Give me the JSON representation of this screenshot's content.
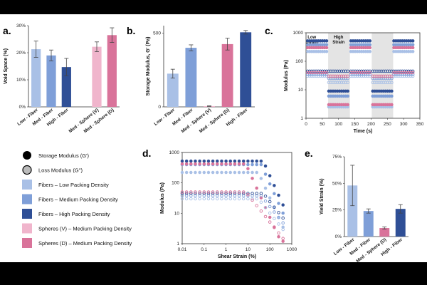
{
  "colors": {
    "low_fiber": "#a9c0e6",
    "med_fiber": "#7f9fd8",
    "high_fiber": "#2f4f96",
    "sphere_v": "#f0b5cc",
    "sphere_d": "#d9739a",
    "strain_band": "#e4e4e4"
  },
  "chart_data": [
    {
      "panel": "a.",
      "type": "bar",
      "title": "",
      "xlabel": "",
      "ylabel": "Void Space (%)",
      "ylim": [
        0,
        30
      ],
      "yticks": [
        "0%",
        "10%",
        "20%",
        "30%"
      ],
      "categories": [
        "Low - Fiber",
        "Med - Fiber",
        "High - Fiber",
        "Med - Sphere (V)",
        "Med - Sphere (D)"
      ],
      "values": [
        21.3,
        19.0,
        14.7,
        22.2,
        26.5
      ],
      "errors": [
        3.0,
        2.0,
        3.2,
        1.8,
        2.7
      ],
      "gap_after_index": 2
    },
    {
      "panel": "b.",
      "type": "bar",
      "title": "",
      "xlabel": "",
      "ylabel": "Storage Modulus, G' (Pa)",
      "ylim": [
        0,
        550
      ],
      "yticks": [
        "0",
        "500"
      ],
      "categories": [
        "Low - Fiber",
        "Med - Fiber",
        "Med - Sphere (V)",
        "Med - Sphere (D)",
        "High - Fiber"
      ],
      "values": [
        225,
        400,
        5,
        425,
        505
      ],
      "errors": [
        30,
        20,
        2,
        40,
        12
      ]
    },
    {
      "panel": "c.",
      "type": "scatter",
      "title": "",
      "xlabel": "Time (s)",
      "ylabel": "Modulus (Pa)",
      "xlim": [
        0,
        350
      ],
      "ylim": [
        1,
        1000
      ],
      "xticks": [
        "0",
        "50",
        "100",
        "150",
        "200",
        "250",
        "300",
        "350"
      ],
      "yticks": [
        "1",
        "10",
        "100",
        "1000"
      ],
      "annotations": [
        "Low\nStrain",
        "High\nStrain"
      ],
      "shaded_intervals": [
        [
          68,
          135
        ],
        [
          202,
          268
        ]
      ],
      "low_strain_intervals": [
        [
          5,
          65
        ],
        [
          138,
          200
        ],
        [
          270,
          332
        ]
      ],
      "high_strain_intervals": [
        [
          70,
          132
        ],
        [
          205,
          265
        ]
      ],
      "series": [
        {
          "name": "Low - Fiber G'",
          "color": "low_fiber",
          "filled": true,
          "low_strain": 220,
          "high_strain": 2.5
        },
        {
          "name": "Med - Fiber G'",
          "color": "med_fiber",
          "filled": true,
          "low_strain": 380,
          "high_strain": 6
        },
        {
          "name": "High - Fiber G'",
          "color": "high_fiber",
          "filled": true,
          "low_strain": 520,
          "high_strain": 9
        },
        {
          "name": "Sphere (D) G'",
          "color": "sphere_d",
          "filled": true,
          "low_strain": 300,
          "high_strain": 3
        },
        {
          "name": "Low - Fiber G''",
          "color": "low_fiber",
          "filled": false,
          "low_strain": 30,
          "high_strain": 18
        },
        {
          "name": "Med - Fiber G''",
          "color": "med_fiber",
          "filled": false,
          "low_strain": 35,
          "high_strain": 25
        },
        {
          "name": "High - Fiber G''",
          "color": "high_fiber",
          "filled": false,
          "low_strain": 45,
          "high_strain": 45
        },
        {
          "name": "Sphere (D) G''",
          "color": "sphere_d",
          "filled": false,
          "low_strain": 40,
          "high_strain": 30
        }
      ]
    },
    {
      "panel": "d.",
      "type": "scatter",
      "title": "",
      "xlabel": "Shear Strain (%)",
      "ylabel": "Modulus (Pa)",
      "xscale": "log",
      "xlim": [
        0.01,
        1000
      ],
      "ylim": [
        1,
        1000
      ],
      "xticks": [
        "0.01",
        "0.1",
        "1",
        "10",
        "100",
        "1000"
      ],
      "yticks": [
        "1",
        "10",
        "100",
        "1000"
      ],
      "series": [
        {
          "name": "Low - Fiber G'",
          "color": "low_fiber",
          "filled": true,
          "plateau": 220,
          "yield_strain": 30
        },
        {
          "name": "Med - Fiber G'",
          "color": "med_fiber",
          "filled": true,
          "plateau": 400,
          "yield_strain": 40
        },
        {
          "name": "High - Fiber G'",
          "color": "high_fiber",
          "filled": true,
          "plateau": 520,
          "yield_strain": 50
        },
        {
          "name": "Sphere (D) G'",
          "color": "sphere_d",
          "filled": true,
          "plateau": 420,
          "yield_strain": 8
        },
        {
          "name": "Low - Fiber G''",
          "color": "low_fiber",
          "filled": false,
          "plateau": 30,
          "yield_strain": 30
        },
        {
          "name": "Med - Fiber G''",
          "color": "med_fiber",
          "filled": false,
          "plateau": 38,
          "yield_strain": 40
        },
        {
          "name": "High - Fiber G''",
          "color": "high_fiber",
          "filled": false,
          "plateau": 45,
          "yield_strain": 50
        },
        {
          "name": "Sphere (D) G''",
          "color": "sphere_d",
          "filled": false,
          "plateau": 50,
          "yield_strain": 8
        }
      ]
    },
    {
      "panel": "e.",
      "type": "bar",
      "title": "",
      "xlabel": "",
      "ylabel": "Yield Strain (%)",
      "ylim": [
        0,
        75
      ],
      "yticks": [
        "0%",
        "25%",
        "50%",
        "75%"
      ],
      "categories": [
        "Low - Fiber",
        "Med - Fiber",
        "Med - Sphere (D)",
        "High - Fiber"
      ],
      "values": [
        48,
        24,
        8,
        26
      ],
      "errors": [
        19,
        2,
        1,
        4
      ]
    }
  ],
  "legend": [
    {
      "label": "Storage Modulus (G')",
      "kind": "black-filled"
    },
    {
      "label": "Loss Modulus (G'')",
      "kind": "black-open"
    },
    {
      "label": "Fibers – Low Packing Density",
      "color": "low_fiber"
    },
    {
      "label": "Fibers – Medium Packing Density",
      "color": "med_fiber"
    },
    {
      "label": "Fibers – High Packing Density",
      "color": "high_fiber"
    },
    {
      "label": "Spheres (V) – Medium Packing Density",
      "color": "sphere_v"
    },
    {
      "label": "Spheres (D) – Medium Packing Density",
      "color": "sphere_d"
    }
  ]
}
